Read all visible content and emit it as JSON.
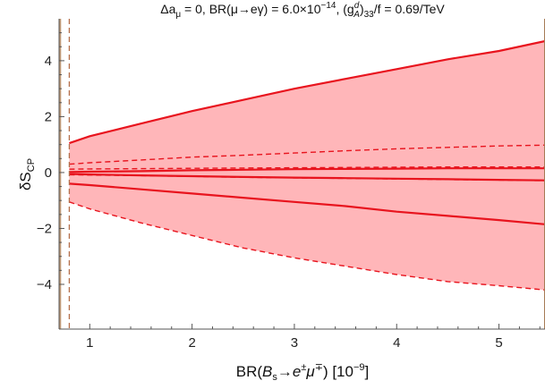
{
  "chart_data": {
    "type": "area",
    "title": "Δa_μ = 0, BR(μ→eγ) = 6.0×10^−14, (g_A^d)_33/f = 0.69/TeV",
    "title_parts": {
      "lhs": "Δa",
      "lhs_sub": "μ",
      "eq1": " = 0, BR(",
      "decay": "μ→eγ",
      "eq2": ") = 6.0×10",
      "exp": "−14",
      "sep": ", (g",
      "g_sup": "d",
      "g_sub": "A",
      "g_close": ")",
      "g_idx": "33",
      "rest": "/f = 0.69/TeV"
    },
    "xlabel": "BR(B_s→e^±μ^∓) [10^−9]",
    "xlabel_parts": {
      "pre": "BR(",
      "B": "B",
      "B_sub": "s",
      "arrow": "→",
      "e": "e",
      "e_sup": "±",
      "mu": "μ",
      "mu_sup": "∓",
      "post": ") [10",
      "exp": "−9",
      "close": "]"
    },
    "ylabel": "δS_CP",
    "ylabel_parts": {
      "main": "δS",
      "sub": "CP"
    },
    "xlim": [
      0.7,
      5.45
    ],
    "ylim": [
      -5.6,
      5.5
    ],
    "xticks": [
      1,
      2,
      3,
      4,
      5
    ],
    "yticks": [
      -4,
      -2,
      0,
      2,
      4
    ],
    "ytick_labels": [
      "−4",
      "−2",
      "0",
      "2",
      "4"
    ],
    "x_excluded_left": 0.72,
    "x_excluded_right": 5.45,
    "vline_dashed": 0.8,
    "colors": {
      "band_fill": "#ffb6b9",
      "curve": "#e8141e",
      "excluded_right": "#a67b55",
      "excluded_left": "#c09a78",
      "vline": "#b56e4a"
    },
    "x": [
      0.8,
      1.0,
      1.5,
      2.0,
      2.5,
      3.0,
      3.5,
      4.0,
      4.5,
      5.0,
      5.45
    ],
    "band": {
      "upper": [
        1.05,
        1.3,
        1.75,
        2.2,
        2.6,
        3.0,
        3.35,
        3.7,
        4.05,
        4.35,
        4.7
      ],
      "lower": [
        -1.05,
        -1.3,
        -1.8,
        -2.25,
        -2.7,
        -3.05,
        -3.35,
        -3.65,
        -3.9,
        -4.05,
        -4.2
      ]
    },
    "series": [
      {
        "style": "solid",
        "values": [
          1.05,
          1.3,
          1.75,
          2.2,
          2.6,
          3.0,
          3.35,
          3.7,
          4.05,
          4.35,
          4.7
        ]
      },
      {
        "style": "dashed",
        "values": [
          0.3,
          0.35,
          0.45,
          0.55,
          0.62,
          0.7,
          0.78,
          0.85,
          0.9,
          0.95,
          0.98
        ]
      },
      {
        "style": "dashed",
        "values": [
          0.12,
          0.13,
          0.14,
          0.15,
          0.16,
          0.17,
          0.18,
          0.19,
          0.2,
          0.2,
          0.2
        ]
      },
      {
        "style": "solid",
        "values": [
          0.02,
          0.03,
          0.05,
          0.08,
          0.1,
          0.12,
          0.13,
          0.14,
          0.15,
          0.15,
          0.15
        ]
      },
      {
        "style": "solid",
        "values": [
          -0.05,
          -0.07,
          -0.1,
          -0.13,
          -0.16,
          -0.18,
          -0.2,
          -0.22,
          -0.24,
          -0.26,
          -0.28
        ]
      },
      {
        "style": "dashed",
        "values": [
          -0.08,
          -0.09,
          -0.11,
          -0.14,
          -0.17,
          -0.19,
          -0.21,
          -0.23,
          -0.25,
          -0.27,
          -0.29
        ]
      },
      {
        "style": "solid",
        "values": [
          -0.4,
          -0.45,
          -0.6,
          -0.75,
          -0.9,
          -1.05,
          -1.2,
          -1.4,
          -1.55,
          -1.7,
          -1.85
        ]
      },
      {
        "style": "dashed",
        "values": [
          -1.05,
          -1.3,
          -1.8,
          -2.25,
          -2.7,
          -3.05,
          -3.35,
          -3.65,
          -3.9,
          -4.05,
          -4.2
        ]
      }
    ]
  }
}
